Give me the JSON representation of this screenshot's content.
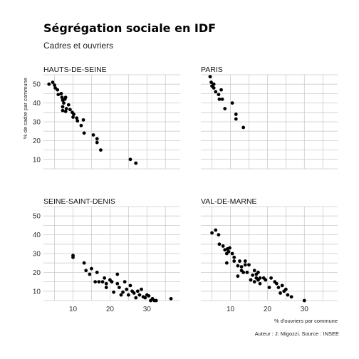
{
  "chart_data": {
    "type": "scatter",
    "title": "Ségrégation sociale en IDF",
    "subtitle": "Cadres et ouvriers",
    "xlabel": "% d'ouvriers par commune",
    "ylabel": "% de cadre par commune",
    "caption": "Auteur : J. Migozzi. Source : INSEE",
    "xlim": [
      2,
      39
    ],
    "ylim": [
      5,
      55
    ],
    "x_ticks": [
      10,
      20,
      30
    ],
    "y_ticks": [
      10,
      20,
      30,
      40,
      50
    ],
    "grid": true,
    "point_color": "#000000",
    "panels": [
      {
        "name": "HAUTS-DE-SEINE",
        "points": [
          [
            3.5,
            50
          ],
          [
            4.5,
            51
          ],
          [
            5,
            49.5
          ],
          [
            5.2,
            48
          ],
          [
            5.8,
            47
          ],
          [
            6,
            44.5
          ],
          [
            6.8,
            45
          ],
          [
            7,
            43
          ],
          [
            7.2,
            41.5
          ],
          [
            7.5,
            40
          ],
          [
            7.8,
            42
          ],
          [
            8,
            43
          ],
          [
            8.2,
            37
          ],
          [
            7.2,
            38
          ],
          [
            7.2,
            36
          ],
          [
            8,
            35.5
          ],
          [
            8.8,
            39
          ],
          [
            9.2,
            36.5
          ],
          [
            9.8,
            35
          ],
          [
            10.2,
            34
          ],
          [
            10,
            32.5
          ],
          [
            11,
            32
          ],
          [
            11.2,
            30.5
          ],
          [
            12.2,
            28
          ],
          [
            12.8,
            31
          ],
          [
            13,
            24
          ],
          [
            15.5,
            23
          ],
          [
            16.5,
            21
          ],
          [
            16.5,
            19
          ],
          [
            17.5,
            15
          ],
          [
            25.5,
            10
          ],
          [
            27,
            8
          ]
        ]
      },
      {
        "name": "PARIS",
        "points": [
          [
            4.5,
            54
          ],
          [
            4.8,
            51
          ],
          [
            5,
            49
          ],
          [
            5.5,
            48
          ],
          [
            5.5,
            50
          ],
          [
            6,
            46
          ],
          [
            6.8,
            44.5
          ],
          [
            7.5,
            47
          ],
          [
            7,
            42
          ],
          [
            7.8,
            42
          ],
          [
            8.5,
            37
          ],
          [
            10.5,
            40
          ],
          [
            11.5,
            34
          ],
          [
            11.5,
            31.5
          ],
          [
            13.5,
            27
          ]
        ]
      },
      {
        "name": "SEINE-SAINT-DENIS",
        "points": [
          [
            10,
            29
          ],
          [
            10,
            28
          ],
          [
            13,
            25
          ],
          [
            13.5,
            21
          ],
          [
            14.5,
            19
          ],
          [
            15,
            22
          ],
          [
            16,
            15
          ],
          [
            16.5,
            20
          ],
          [
            17,
            15
          ],
          [
            18,
            15
          ],
          [
            18.5,
            17
          ],
          [
            19,
            14
          ],
          [
            19,
            12
          ],
          [
            20,
            16
          ],
          [
            20.5,
            15
          ],
          [
            21,
            9.5
          ],
          [
            22,
            19
          ],
          [
            22,
            14
          ],
          [
            22.5,
            12
          ],
          [
            23,
            8
          ],
          [
            23.5,
            9.5
          ],
          [
            24,
            15
          ],
          [
            24.5,
            11
          ],
          [
            25,
            8
          ],
          [
            25.5,
            13
          ],
          [
            26,
            10
          ],
          [
            26.5,
            9
          ],
          [
            27,
            6.5
          ],
          [
            27.5,
            10
          ],
          [
            28,
            8
          ],
          [
            28.5,
            11
          ],
          [
            29,
            7
          ],
          [
            29.5,
            6.5
          ],
          [
            30,
            8
          ],
          [
            30.5,
            7.5
          ],
          [
            31,
            5
          ],
          [
            31.5,
            6
          ],
          [
            32,
            5
          ],
          [
            32.5,
            5
          ],
          [
            36.5,
            6
          ]
        ]
      },
      {
        "name": "VAL-DE-MARNE",
        "points": [
          [
            5,
            41
          ],
          [
            6,
            42.5
          ],
          [
            6.8,
            40
          ],
          [
            7,
            35
          ],
          [
            8,
            34
          ],
          [
            8.5,
            32
          ],
          [
            9,
            30
          ],
          [
            9.5,
            31
          ],
          [
            9.2,
            32.5
          ],
          [
            9.8,
            33
          ],
          [
            9,
            25
          ],
          [
            10.5,
            30
          ],
          [
            11,
            28
          ],
          [
            11,
            26
          ],
          [
            12,
            23.5
          ],
          [
            12,
            18
          ],
          [
            12.5,
            26
          ],
          [
            13,
            23
          ],
          [
            13,
            21
          ],
          [
            13.5,
            20
          ],
          [
            14,
            24
          ],
          [
            14,
            26
          ],
          [
            14.5,
            20
          ],
          [
            15,
            24
          ],
          [
            15.5,
            16
          ],
          [
            16,
            18.5
          ],
          [
            16.5,
            15
          ],
          [
            16.5,
            21
          ],
          [
            17,
            19
          ],
          [
            17,
            17
          ],
          [
            17.5,
            16
          ],
          [
            17.5,
            20
          ],
          [
            18,
            17
          ],
          [
            18,
            14
          ],
          [
            19,
            17
          ],
          [
            19.5,
            16
          ],
          [
            20.5,
            12
          ],
          [
            21,
            17
          ],
          [
            22,
            15
          ],
          [
            22.5,
            14
          ],
          [
            23,
            12
          ],
          [
            23.5,
            9
          ],
          [
            24,
            13
          ],
          [
            24.5,
            10
          ],
          [
            25,
            11
          ],
          [
            25.5,
            8
          ],
          [
            26.5,
            7
          ],
          [
            30,
            5
          ]
        ]
      }
    ]
  }
}
